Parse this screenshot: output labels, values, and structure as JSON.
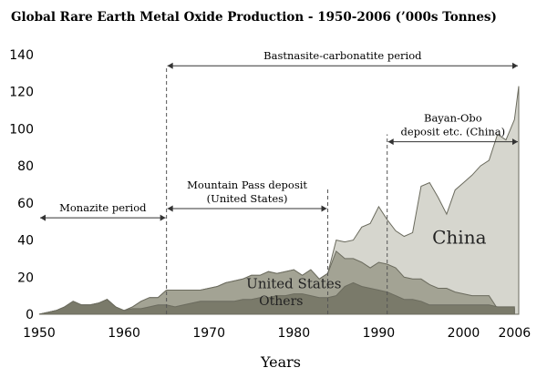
{
  "chart_data": {
    "type": "area",
    "title": "Global Rare Earth Metal Oxide Production - 1950-2006 (’000s Tonnes)",
    "xlabel": "Years",
    "ylabel": "",
    "xlim": [
      1950,
      2006
    ],
    "ylim": [
      0,
      140
    ],
    "x_ticks": [
      "1950",
      "1960",
      "1970",
      "1980",
      "1990",
      "2000",
      "2006"
    ],
    "x_tick_values": [
      1950,
      1960,
      1970,
      1980,
      1990,
      2000,
      2006
    ],
    "y_ticks": [
      "0",
      "20",
      "40",
      "60",
      "80",
      "100",
      "120",
      "140"
    ],
    "y_tick_values": [
      0,
      20,
      40,
      60,
      80,
      100,
      120,
      140
    ],
    "stacked": true,
    "series": [
      {
        "name": "Others",
        "color": "#7a7a6a",
        "points": [
          [
            1950,
            0
          ],
          [
            1951,
            1
          ],
          [
            1952,
            2
          ],
          [
            1953,
            4
          ],
          [
            1954,
            7
          ],
          [
            1955,
            5
          ],
          [
            1956,
            5
          ],
          [
            1957,
            6
          ],
          [
            1958,
            8
          ],
          [
            1959,
            4
          ],
          [
            1960,
            2
          ],
          [
            1961,
            3
          ],
          [
            1962,
            3
          ],
          [
            1963,
            4
          ],
          [
            1964,
            5
          ],
          [
            1965,
            5
          ],
          [
            1966,
            4
          ],
          [
            1967,
            5
          ],
          [
            1968,
            6
          ],
          [
            1969,
            7
          ],
          [
            1970,
            7
          ],
          [
            1971,
            7
          ],
          [
            1972,
            7
          ],
          [
            1973,
            7
          ],
          [
            1974,
            8
          ],
          [
            1975,
            8
          ],
          [
            1976,
            9
          ],
          [
            1977,
            9
          ],
          [
            1978,
            10
          ],
          [
            1979,
            10
          ],
          [
            1980,
            11
          ],
          [
            1981,
            11
          ],
          [
            1982,
            10
          ],
          [
            1983,
            9
          ],
          [
            1984,
            9
          ],
          [
            1985,
            10
          ],
          [
            1986,
            15
          ],
          [
            1987,
            17
          ],
          [
            1988,
            15
          ],
          [
            1989,
            14
          ],
          [
            1990,
            13
          ],
          [
            1991,
            12
          ],
          [
            1992,
            10
          ],
          [
            1993,
            8
          ],
          [
            1994,
            8
          ],
          [
            1995,
            7
          ],
          [
            1996,
            5
          ],
          [
            1997,
            5
          ],
          [
            1998,
            5
          ],
          [
            1999,
            5
          ],
          [
            2000,
            5
          ],
          [
            2001,
            5
          ],
          [
            2002,
            5
          ],
          [
            2003,
            5
          ],
          [
            2004,
            4
          ],
          [
            2005,
            4
          ],
          [
            2006,
            4
          ]
        ]
      },
      {
        "name": "United States",
        "color": "#a3a394",
        "points": [
          [
            1950,
            0
          ],
          [
            1951,
            1
          ],
          [
            1952,
            2
          ],
          [
            1953,
            4
          ],
          [
            1954,
            7
          ],
          [
            1955,
            5
          ],
          [
            1956,
            5
          ],
          [
            1957,
            6
          ],
          [
            1958,
            8
          ],
          [
            1959,
            4
          ],
          [
            1960,
            2
          ],
          [
            1961,
            4
          ],
          [
            1962,
            7
          ],
          [
            1963,
            9
          ],
          [
            1964,
            9
          ],
          [
            1965,
            13
          ],
          [
            1966,
            13
          ],
          [
            1967,
            13
          ],
          [
            1968,
            13
          ],
          [
            1969,
            13
          ],
          [
            1970,
            14
          ],
          [
            1971,
            15
          ],
          [
            1972,
            17
          ],
          [
            1973,
            18
          ],
          [
            1974,
            19
          ],
          [
            1975,
            21
          ],
          [
            1976,
            21
          ],
          [
            1977,
            23
          ],
          [
            1978,
            22
          ],
          [
            1979,
            23
          ],
          [
            1980,
            24
          ],
          [
            1981,
            21
          ],
          [
            1982,
            24
          ],
          [
            1983,
            19
          ],
          [
            1984,
            22
          ],
          [
            1985,
            34
          ],
          [
            1986,
            30
          ],
          [
            1987,
            30
          ],
          [
            1988,
            28
          ],
          [
            1989,
            25
          ],
          [
            1990,
            28
          ],
          [
            1991,
            27
          ],
          [
            1992,
            25
          ],
          [
            1993,
            20
          ],
          [
            1994,
            19
          ],
          [
            1995,
            19
          ],
          [
            1996,
            16
          ],
          [
            1997,
            14
          ],
          [
            1998,
            14
          ],
          [
            1999,
            12
          ],
          [
            2000,
            11
          ],
          [
            2001,
            10
          ],
          [
            2002,
            10
          ],
          [
            2003,
            10
          ],
          [
            2004,
            3
          ],
          [
            2005,
            3
          ],
          [
            2006,
            3
          ]
        ]
      },
      {
        "name": "China",
        "color": "#d6d6ce",
        "points": [
          [
            1950,
            0
          ],
          [
            1951,
            1
          ],
          [
            1952,
            2
          ],
          [
            1953,
            4
          ],
          [
            1954,
            7
          ],
          [
            1955,
            5
          ],
          [
            1956,
            5
          ],
          [
            1957,
            6
          ],
          [
            1958,
            8
          ],
          [
            1959,
            4
          ],
          [
            1960,
            2
          ],
          [
            1961,
            4
          ],
          [
            1962,
            7
          ],
          [
            1963,
            9
          ],
          [
            1964,
            9
          ],
          [
            1965,
            13
          ],
          [
            1966,
            13
          ],
          [
            1967,
            13
          ],
          [
            1968,
            13
          ],
          [
            1969,
            13
          ],
          [
            1970,
            14
          ],
          [
            1971,
            15
          ],
          [
            1972,
            17
          ],
          [
            1973,
            18
          ],
          [
            1974,
            19
          ],
          [
            1975,
            21
          ],
          [
            1976,
            21
          ],
          [
            1977,
            23
          ],
          [
            1978,
            22
          ],
          [
            1979,
            23
          ],
          [
            1980,
            24
          ],
          [
            1981,
            21
          ],
          [
            1982,
            24
          ],
          [
            1983,
            19
          ],
          [
            1984,
            22
          ],
          [
            1985,
            40
          ],
          [
            1986,
            39
          ],
          [
            1987,
            40
          ],
          [
            1988,
            47
          ],
          [
            1989,
            49
          ],
          [
            1990,
            58
          ],
          [
            1991,
            51
          ],
          [
            1992,
            45
          ],
          [
            1993,
            42
          ],
          [
            1994,
            44
          ],
          [
            1995,
            69
          ],
          [
            1996,
            71
          ],
          [
            1997,
            63
          ],
          [
            1998,
            54
          ],
          [
            1999,
            67
          ],
          [
            2000,
            71
          ],
          [
            2001,
            75
          ],
          [
            2002,
            80
          ],
          [
            2003,
            83
          ],
          [
            2004,
            97
          ],
          [
            2005,
            94
          ],
          [
            2006,
            105
          ],
          [
            2006.5,
            123
          ]
        ]
      }
    ],
    "periods": [
      {
        "label": "Monazite period",
        "from": 1950,
        "to": 1965,
        "y": 52
      },
      {
        "label": "Bastnasite-carbonatite period",
        "from": 1965,
        "to": 2006.5,
        "y": 134
      },
      {
        "label": "Mountain Pass deposit",
        "label2": "(United States)",
        "from": 1965,
        "to": 1984,
        "y": 57
      },
      {
        "label": "Bayan-Obo",
        "label2": "deposit etc. (China)",
        "from": 1991,
        "to": 2006.5,
        "y": 93
      }
    ],
    "dividers": [
      {
        "x": 1965,
        "from": 0,
        "to": 134
      },
      {
        "x": 1984,
        "from": 0,
        "to": 68
      },
      {
        "x": 1991,
        "from": 0,
        "to": 97
      }
    ],
    "region_labels": [
      {
        "text": "China",
        "x": 1999.5,
        "y": 38,
        "size": 20
      },
      {
        "text": "United States",
        "x": 1980,
        "y": 14,
        "size": 15
      },
      {
        "text": "Others",
        "x": 1978.5,
        "y": 5,
        "size": 14
      }
    ],
    "grid": false,
    "legend": "none"
  }
}
